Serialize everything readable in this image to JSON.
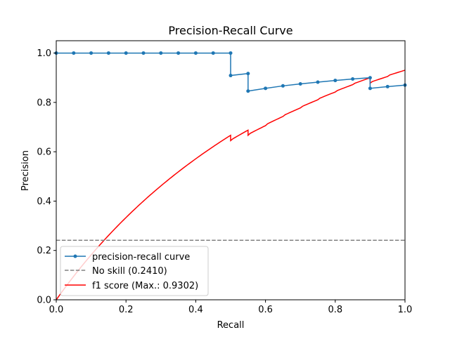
{
  "chart_data": {
    "type": "line",
    "title": "Precision-Recall Curve",
    "xlabel": "Recall",
    "ylabel": "Precision",
    "xlim": [
      0.0,
      1.0
    ],
    "ylim": [
      0.0,
      1.05
    ],
    "xticks": [
      "0.0",
      "0.2",
      "0.4",
      "0.6",
      "0.8",
      "1.0"
    ],
    "yticks": [
      "0.0",
      "0.2",
      "0.4",
      "0.6",
      "0.8",
      "1.0"
    ],
    "grid": false,
    "legend_position": "lower-left",
    "series": [
      {
        "name": "precision-recall curve",
        "color": "#1f77b4",
        "style": "step-with-markers",
        "x": [
          0.0,
          0.05,
          0.1,
          0.15,
          0.2,
          0.25,
          0.3,
          0.35,
          0.4,
          0.45,
          0.5,
          0.5,
          0.55,
          0.55,
          0.6,
          0.65,
          0.7,
          0.75,
          0.8,
          0.85,
          0.9,
          0.9,
          0.95,
          1.0
        ],
        "y": [
          1.0,
          1.0,
          1.0,
          1.0,
          1.0,
          1.0,
          1.0,
          1.0,
          1.0,
          1.0,
          1.0,
          0.909,
          0.917,
          0.846,
          0.857,
          0.867,
          0.875,
          0.882,
          0.889,
          0.895,
          0.9,
          0.857,
          0.864,
          0.87
        ]
      },
      {
        "name": "No skill (0.2410)",
        "color": "#808080",
        "style": "dashed",
        "y_constant": 0.241
      },
      {
        "name": "f1 score (Max.: 0.9302)",
        "color": "#ff0000",
        "style": "solid",
        "note": "f1 = 2*P*R/(P+R) evaluated along the precision-recall curve"
      }
    ]
  }
}
